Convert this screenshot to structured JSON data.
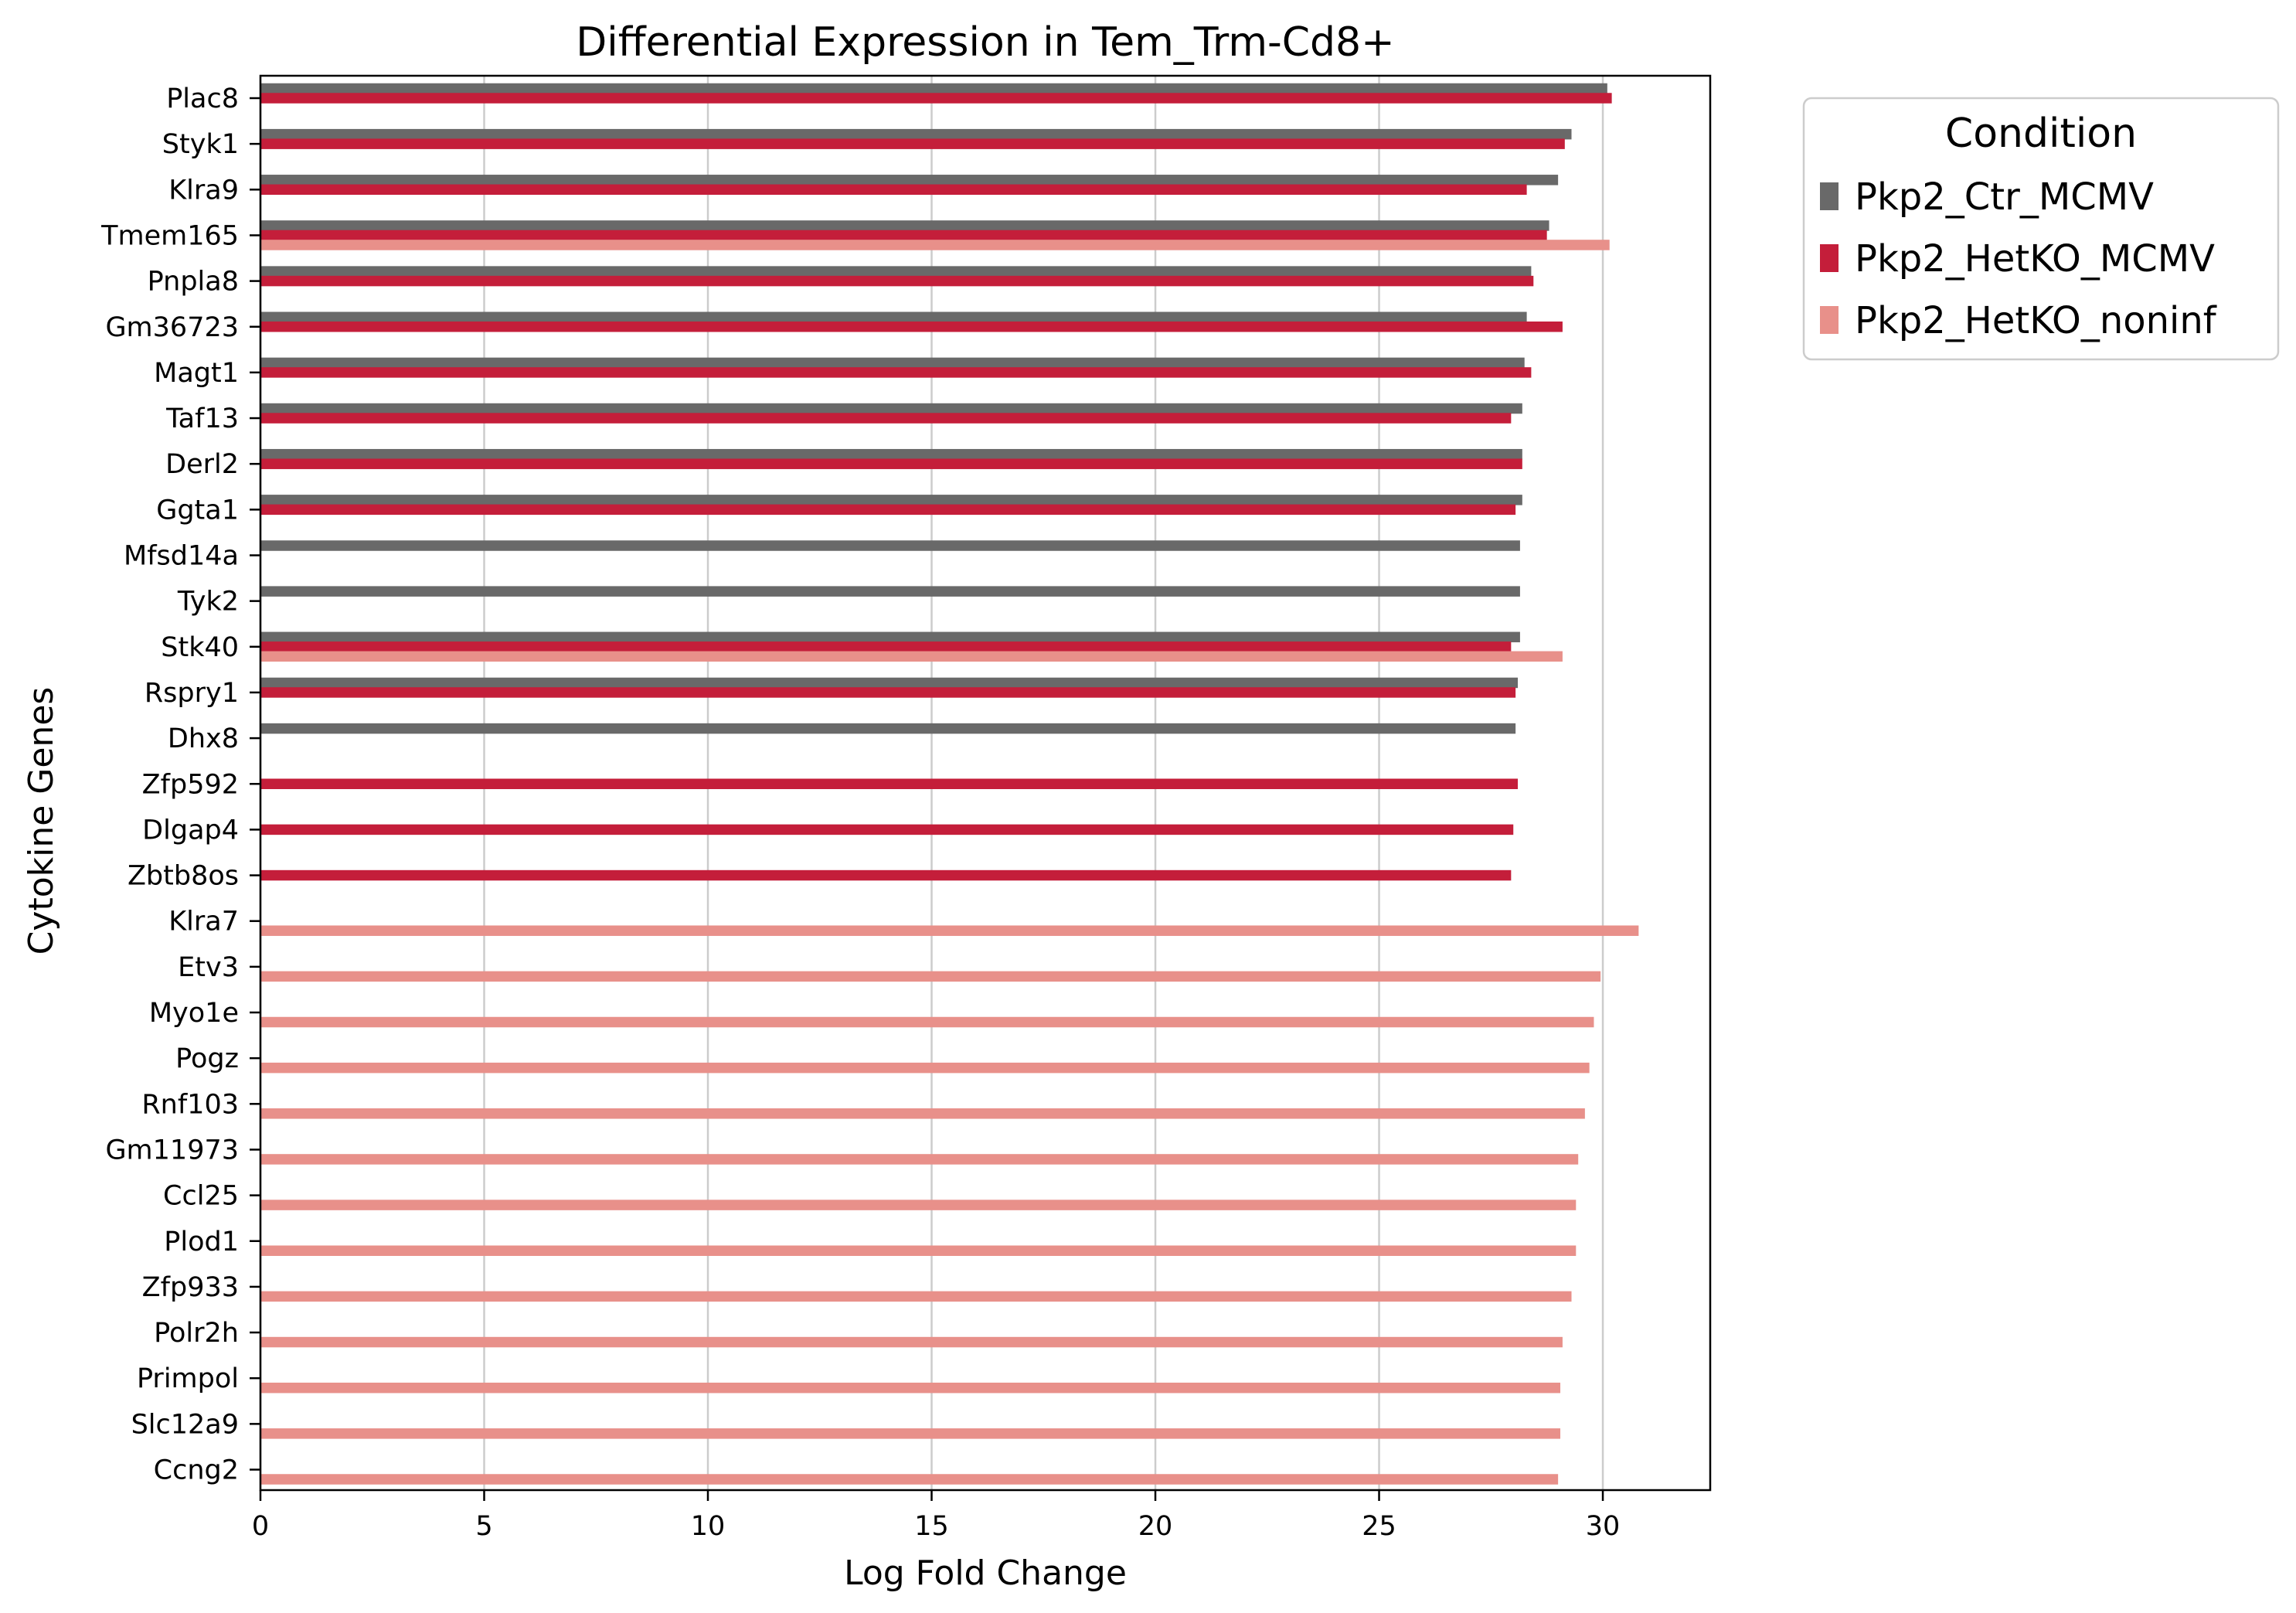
{
  "chart_data": {
    "type": "bar",
    "orientation": "horizontal",
    "title": "Differential Expression in Tem_Trm-Cd8+",
    "xlabel": "Log Fold Change",
    "ylabel": "Cytokine Genes",
    "xlim": [
      0,
      32.4
    ],
    "xticks": [
      0,
      5,
      10,
      15,
      20,
      25,
      30
    ],
    "grid": "vertical",
    "legend": {
      "title": "Condition",
      "placement": "outside-top-right"
    },
    "categories": [
      "Plac8",
      "Styk1",
      "Klra9",
      "Tmem165",
      "Pnpla8",
      "Gm36723",
      "Magt1",
      "Taf13",
      "Derl2",
      "Ggta1",
      "Mfsd14a",
      "Tyk2",
      "Stk40",
      "Rspry1",
      "Dhx8",
      "Zfp592",
      "Dlgap4",
      "Zbtb8os",
      "Klra7",
      "Etv3",
      "Myo1e",
      "Pogz",
      "Rnf103",
      "Gm11973",
      "Ccl25",
      "Plod1",
      "Zfp933",
      "Polr2h",
      "Primpol",
      "Slc12a9",
      "Ccng2"
    ],
    "series": [
      {
        "name": "Pkp2_Ctr_MCMV",
        "color": "#696969",
        "values": [
          30.1,
          29.3,
          29.0,
          28.8,
          28.4,
          28.3,
          28.25,
          28.2,
          28.2,
          28.2,
          28.15,
          28.15,
          28.15,
          28.1,
          28.05,
          null,
          null,
          null,
          null,
          null,
          null,
          null,
          null,
          null,
          null,
          null,
          null,
          null,
          null,
          null,
          null
        ]
      },
      {
        "name": "Pkp2_HetKO_MCMV",
        "color": "#c41e3a",
        "values": [
          30.2,
          29.15,
          28.3,
          28.75,
          28.45,
          29.1,
          28.4,
          27.95,
          28.2,
          28.05,
          null,
          null,
          27.95,
          28.05,
          null,
          28.1,
          28.0,
          27.95,
          null,
          null,
          null,
          null,
          null,
          null,
          null,
          null,
          null,
          null,
          null,
          null,
          null
        ]
      },
      {
        "name": "Pkp2_HetKO_noninf",
        "color": "#e8908a",
        "values": [
          null,
          null,
          null,
          30.15,
          null,
          null,
          null,
          null,
          null,
          null,
          null,
          null,
          29.1,
          null,
          null,
          null,
          null,
          null,
          30.8,
          29.95,
          29.8,
          29.7,
          29.6,
          29.45,
          29.4,
          29.4,
          29.3,
          29.1,
          29.05,
          29.05,
          29.0
        ]
      }
    ]
  }
}
